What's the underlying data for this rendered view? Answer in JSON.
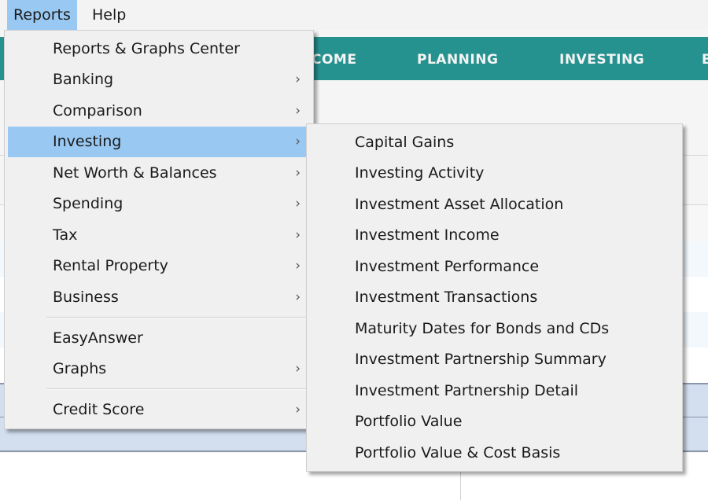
{
  "menubar": {
    "items": [
      {
        "label": "Reports",
        "active": true
      },
      {
        "label": "Help",
        "active": false
      }
    ]
  },
  "nav": {
    "color": "#26928f",
    "tabs": [
      "COME",
      "PLANNING",
      "INVESTING",
      "B"
    ]
  },
  "reports_menu": {
    "items": [
      {
        "label": "Reports & Graphs Center",
        "submenu": false
      },
      {
        "label": "Banking",
        "submenu": true
      },
      {
        "label": "Comparison",
        "submenu": true
      },
      {
        "label": "Investing",
        "submenu": true,
        "highlighted": true
      },
      {
        "label": "Net Worth & Balances",
        "submenu": true
      },
      {
        "label": "Spending",
        "submenu": true
      },
      {
        "label": "Tax",
        "submenu": true
      },
      {
        "label": "Rental Property",
        "submenu": true
      },
      {
        "label": "Business",
        "submenu": true
      },
      {
        "label": "EasyAnswer",
        "submenu": false
      },
      {
        "label": "Graphs",
        "submenu": true
      },
      {
        "label": "Credit Score",
        "submenu": true
      }
    ],
    "arrow": "›"
  },
  "investing_submenu": {
    "items": [
      "Capital Gains",
      "Investing Activity",
      "Investment Asset Allocation",
      "Investment Income",
      "Investment Performance",
      "Investment Transactions",
      "Maturity Dates for Bonds and CDs",
      "Investment Partnership Summary",
      "Investment Partnership Detail",
      "Portfolio Value",
      "Portfolio Value & Cost Basis"
    ]
  },
  "colors": {
    "highlight": "#99c9f2",
    "menu_bg": "#f0f0f0",
    "selected_rows": "#d3deef"
  }
}
